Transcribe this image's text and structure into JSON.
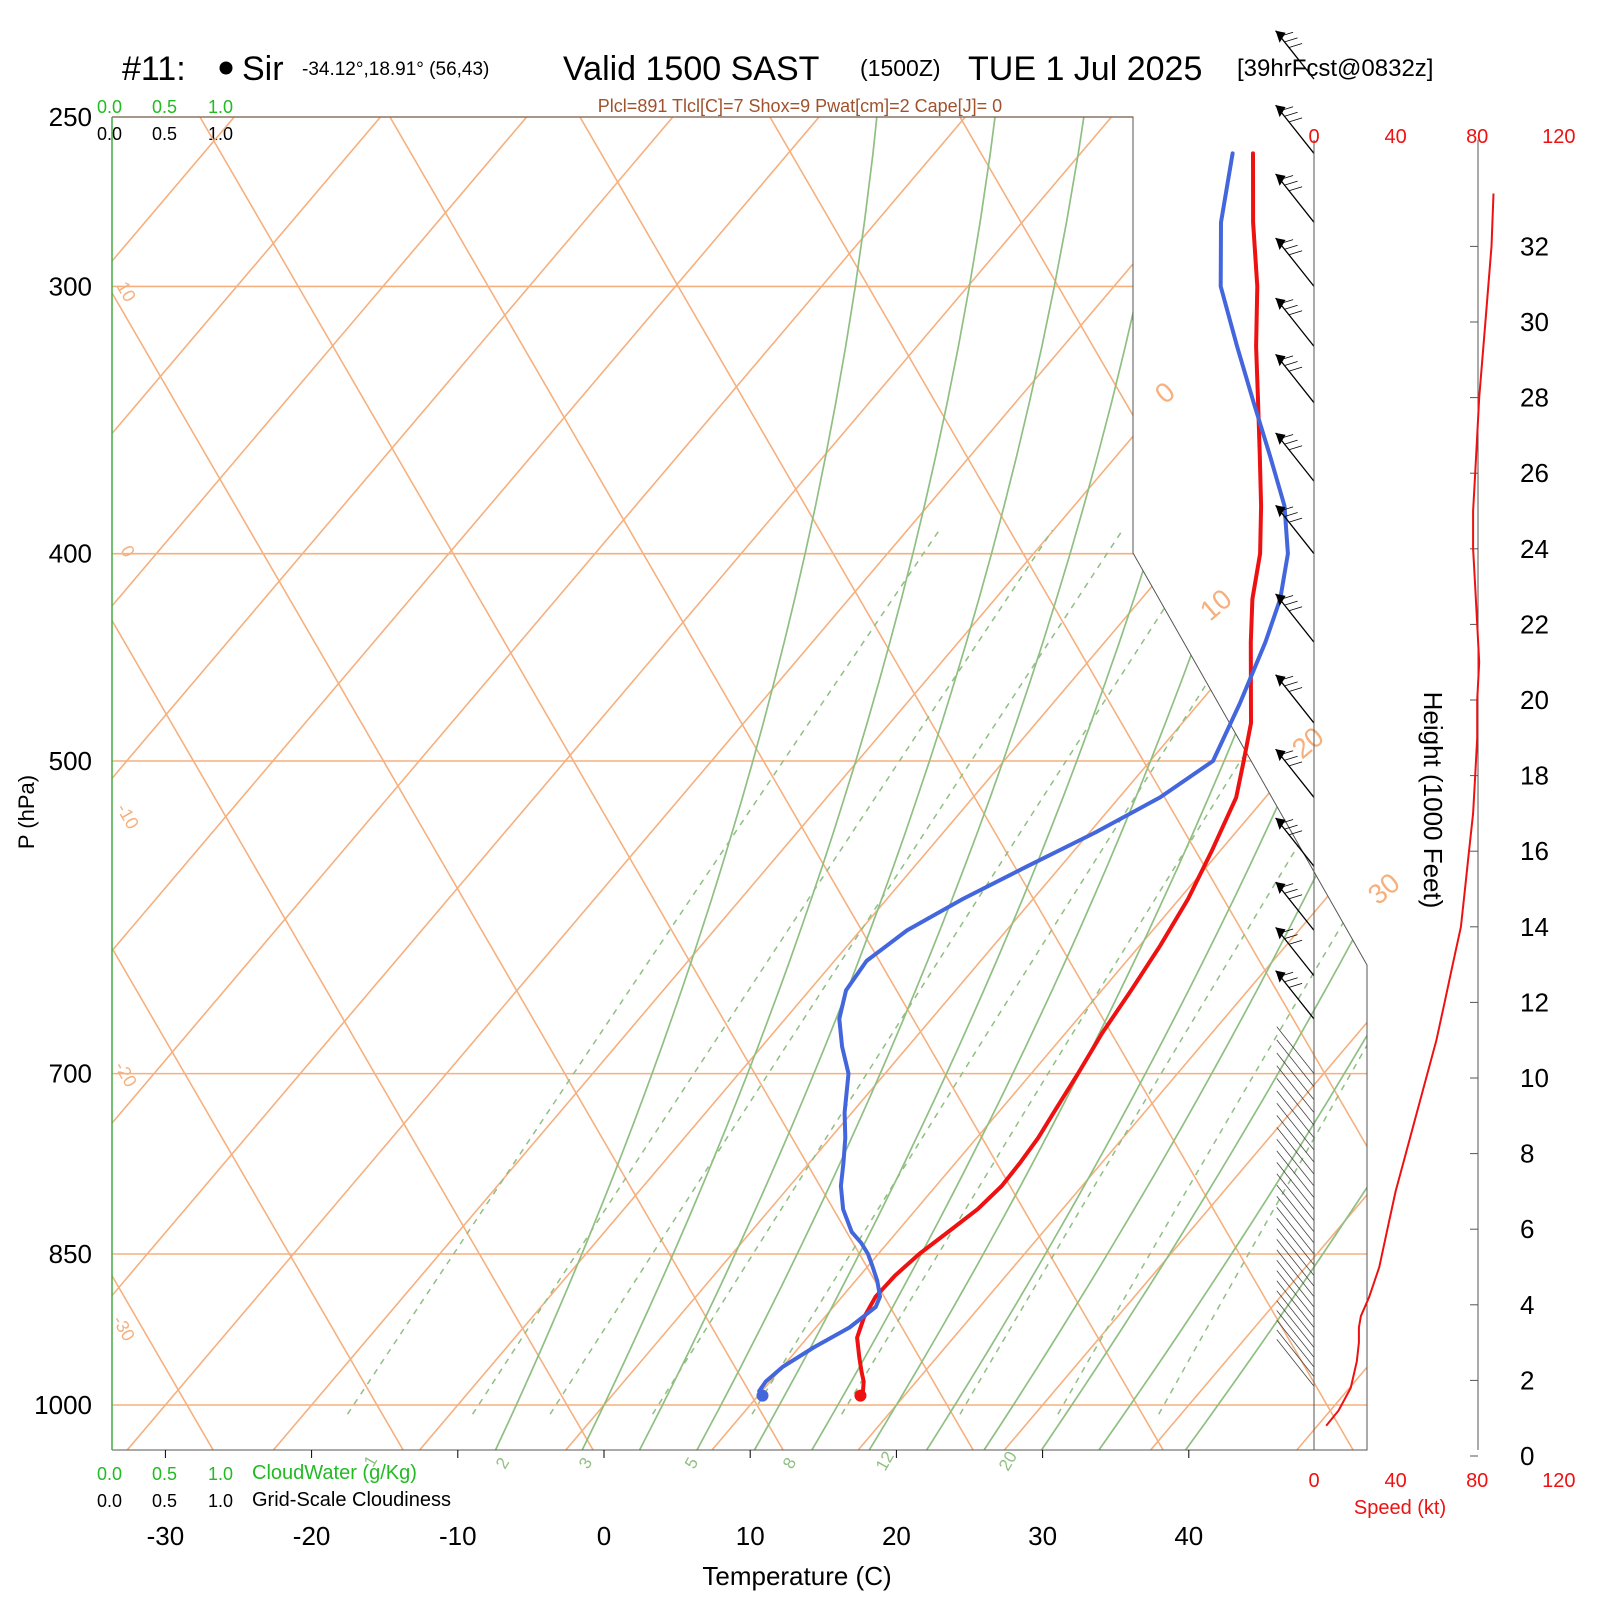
{
  "header": {
    "station_id": "#11:",
    "station_name": "Sir",
    "coords": "-34.12°,18.91° (56,43)",
    "valid": "Valid 1500 SAST",
    "zulu": "(1500Z)",
    "date": "TUE 1 Jul 2025",
    "forecast": "[39hrFcst@0832z]",
    "indices": "Plcl=891 Tlcl[C]=7 Shox=9 Pwat[cm]=2 Cape[J]= 0"
  },
  "scales": {
    "cloudwater_ticks": [
      "0.0",
      "0.5",
      "1.0"
    ],
    "cloudiness_ticks": [
      "0.0",
      "0.5",
      "1.0"
    ],
    "cloudwater_label": "CloudWater (g/Kg)",
    "cloudiness_label": "Grid-Scale Cloudiness"
  },
  "colors": {
    "temperature": "#ee1111",
    "dewpoint": "#4466dd",
    "isotherm": "#f6b07e",
    "adiabat": "#8fbf82",
    "cloudwater_text": "#22bb22",
    "indices_text": "#a0522d",
    "speed": "#ee1111"
  },
  "chart_data": [
    {
      "type": "line",
      "name": "skew-t",
      "title": "",
      "xlabel": "Temperature (C)",
      "ylabel": "P (hPa)",
      "x_ticks": [
        -30,
        -20,
        -10,
        0,
        10,
        20,
        30,
        40
      ],
      "y_ticks": [
        250,
        300,
        400,
        500,
        700,
        850,
        1000
      ],
      "y_scale": "log",
      "isotherm_labels_left": [
        "10",
        "0",
        "-10",
        "-20",
        "-30"
      ],
      "isotherm_labels_right": [
        "0",
        "10",
        "20",
        "30"
      ],
      "mixing_ratio_labels": [
        "1",
        "2",
        "3",
        "5",
        "8",
        "12",
        "20"
      ],
      "series": [
        {
          "p": [
            990,
            985,
            975,
            965,
            950,
            930,
            910,
            890,
            870,
            850,
            830,
            810,
            790,
            770,
            750,
            730,
            700,
            670,
            640,
            610,
            580,
            550,
            520,
            500,
            480,
            460,
            440,
            420,
            400,
            380,
            360,
            340,
            320,
            300,
            280,
            260
          ],
          "values": [
            17.0,
            16.9,
            16.4,
            15.7,
            14.7,
            13.4,
            12.7,
            12.3,
            12.4,
            12.8,
            13.5,
            14.2,
            14.5,
            14.4,
            14.2,
            13.8,
            13.2,
            12.5,
            12.0,
            11.4,
            10.6,
            9.4,
            8.0,
            6.4,
            4.7,
            2.4,
            0.0,
            -2.4,
            -4.5,
            -7.2,
            -10.2,
            -13.4,
            -16.8,
            -20.2,
            -24.2,
            -28.2
          ]
        },
        {
          "p": [
            990,
            985,
            975,
            960,
            940,
            920,
            900,
            890,
            875,
            860,
            850,
            840,
            830,
            810,
            790,
            770,
            750,
            730,
            700,
            680,
            660,
            640,
            620,
            600,
            580,
            560,
            540,
            520,
            500,
            470,
            440,
            420,
            400,
            380,
            360,
            340,
            320,
            300,
            280,
            260
          ],
          "values": [
            10.3,
            9.8,
            9.7,
            10.0,
            11.0,
            12.3,
            12.9,
            12.6,
            11.5,
            10.2,
            9.3,
            8.2,
            6.9,
            5.0,
            3.5,
            2.3,
            1.0,
            -0.5,
            -2.5,
            -4.5,
            -6.3,
            -7.5,
            -7.8,
            -6.8,
            -4.8,
            -2.3,
            0.4,
            2.8,
            4.3,
            2.8,
            1.0,
            -0.5,
            -2.6,
            -5.6,
            -9.5,
            -13.7,
            -18.1,
            -22.7,
            -26.4,
            -29.6
          ]
        }
      ]
    },
    {
      "type": "line",
      "name": "speed-profile",
      "xlabel": "Speed (kt)",
      "ylabel": "Height (1000 Feet)",
      "x_ticks": [
        "0",
        "40",
        "80",
        "120"
      ],
      "y_ticks": [
        "0",
        "2",
        "4",
        "6",
        "8",
        "10",
        "12",
        "14",
        "16",
        "18",
        "20",
        "22",
        "24",
        "26",
        "28",
        "30",
        "32"
      ],
      "x": [
        6,
        12,
        18,
        21,
        22,
        22,
        23,
        27,
        32,
        36,
        40,
        45,
        50,
        55,
        60,
        64,
        68,
        72,
        74,
        76,
        78,
        79,
        80,
        80,
        81,
        80,
        79,
        78,
        78,
        79,
        80,
        81,
        84,
        87,
        88
      ],
      "y": [
        0.8,
        1.2,
        1.8,
        2.5,
        3.0,
        3.4,
        3.7,
        4.2,
        5.0,
        6.0,
        7.0,
        8.0,
        9.0,
        10.0,
        11.0,
        12.0,
        13.0,
        14.0,
        15.0,
        16.0,
        17.0,
        18.0,
        19.0,
        20.0,
        21.0,
        22.0,
        23.0,
        24.0,
        25.0,
        26.0,
        27.0,
        28.0,
        30.0,
        32.0,
        33.4
      ]
    }
  ]
}
